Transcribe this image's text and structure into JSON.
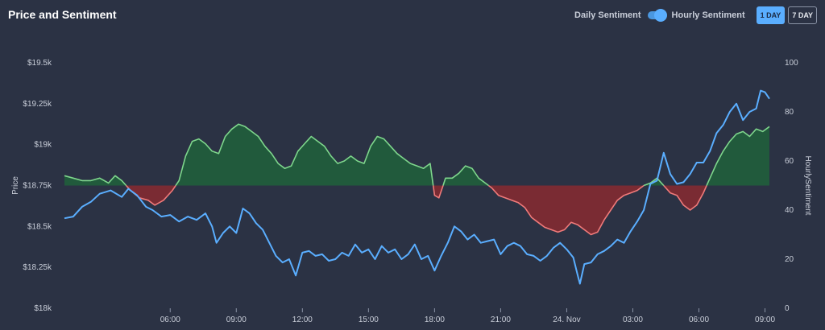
{
  "title": "Price and Sentiment",
  "controls": {
    "daily_label": "Daily Sentiment",
    "hourly_label": "Hourly Sentiment",
    "btn_1day": "1 DAY",
    "btn_7day": "7 DAY"
  },
  "colors": {
    "price_line": "#5aaeff",
    "positive_fill": "#215a3c",
    "positive_line": "#7ed68c",
    "negative_fill": "#7a2b33",
    "negative_line": "#f07a7a",
    "background": "#2b3244"
  },
  "chart_data": {
    "type": "line",
    "title": "",
    "xlabel": "",
    "ylabel": "Price",
    "ylabel_right": "HourlySentiment",
    "ylim": [
      18000,
      19500
    ],
    "ylim_right": [
      0,
      100
    ],
    "sentiment_baseline": 50,
    "y_ticks": [
      "$19.5k",
      "$19.25k",
      "$19k",
      "$18.75k",
      "$18.5k",
      "$18.25k",
      "$18k"
    ],
    "y_tick_values": [
      19500,
      19250,
      19000,
      18750,
      18500,
      18250,
      18000
    ],
    "y_right_ticks": [
      "100",
      "80",
      "60",
      "40",
      "20",
      "0"
    ],
    "y_right_tick_values": [
      100,
      80,
      60,
      40,
      20,
      0
    ],
    "x_ticks": [
      "06:00",
      "09:00",
      "12:00",
      "15:00",
      "18:00",
      "21:00",
      "24. Nov",
      "03:00",
      "06:00",
      "09:00"
    ],
    "x_tick_hours": [
      6,
      9,
      12,
      15,
      18,
      21,
      24,
      27,
      30,
      33
    ],
    "x_range_hours": [
      1.2,
      33.2
    ],
    "series": [
      {
        "name": "Price",
        "axis": "left",
        "points": [
          [
            1.2,
            18550
          ],
          [
            1.6,
            18560
          ],
          [
            2.0,
            18620
          ],
          [
            2.4,
            18650
          ],
          [
            2.8,
            18700
          ],
          [
            3.3,
            18720
          ],
          [
            3.8,
            18680
          ],
          [
            4.1,
            18730
          ],
          [
            4.5,
            18690
          ],
          [
            4.9,
            18620
          ],
          [
            5.2,
            18600
          ],
          [
            5.6,
            18560
          ],
          [
            6.0,
            18570
          ],
          [
            6.4,
            18530
          ],
          [
            6.8,
            18560
          ],
          [
            7.2,
            18540
          ],
          [
            7.6,
            18580
          ],
          [
            7.9,
            18500
          ],
          [
            8.1,
            18400
          ],
          [
            8.4,
            18460
          ],
          [
            8.7,
            18500
          ],
          [
            9.0,
            18460
          ],
          [
            9.3,
            18610
          ],
          [
            9.6,
            18580
          ],
          [
            9.9,
            18520
          ],
          [
            10.2,
            18480
          ],
          [
            10.5,
            18400
          ],
          [
            10.8,
            18320
          ],
          [
            11.1,
            18280
          ],
          [
            11.4,
            18300
          ],
          [
            11.7,
            18200
          ],
          [
            12.0,
            18340
          ],
          [
            12.3,
            18350
          ],
          [
            12.6,
            18320
          ],
          [
            12.9,
            18330
          ],
          [
            13.2,
            18290
          ],
          [
            13.5,
            18300
          ],
          [
            13.8,
            18340
          ],
          [
            14.1,
            18320
          ],
          [
            14.4,
            18390
          ],
          [
            14.7,
            18340
          ],
          [
            15.0,
            18360
          ],
          [
            15.3,
            18300
          ],
          [
            15.6,
            18380
          ],
          [
            15.9,
            18340
          ],
          [
            16.2,
            18360
          ],
          [
            16.5,
            18300
          ],
          [
            16.8,
            18330
          ],
          [
            17.1,
            18390
          ],
          [
            17.4,
            18300
          ],
          [
            17.7,
            18320
          ],
          [
            18.0,
            18230
          ],
          [
            18.3,
            18320
          ],
          [
            18.6,
            18400
          ],
          [
            18.9,
            18500
          ],
          [
            19.2,
            18470
          ],
          [
            19.5,
            18420
          ],
          [
            19.8,
            18450
          ],
          [
            20.1,
            18400
          ],
          [
            20.4,
            18410
          ],
          [
            20.7,
            18420
          ],
          [
            21.0,
            18330
          ],
          [
            21.3,
            18380
          ],
          [
            21.6,
            18400
          ],
          [
            21.9,
            18380
          ],
          [
            22.2,
            18330
          ],
          [
            22.5,
            18320
          ],
          [
            22.8,
            18290
          ],
          [
            23.1,
            18320
          ],
          [
            23.4,
            18370
          ],
          [
            23.7,
            18400
          ],
          [
            24.0,
            18360
          ],
          [
            24.3,
            18310
          ],
          [
            24.5,
            18200
          ],
          [
            24.6,
            18150
          ],
          [
            24.8,
            18270
          ],
          [
            25.1,
            18280
          ],
          [
            25.4,
            18330
          ],
          [
            25.7,
            18350
          ],
          [
            26.0,
            18380
          ],
          [
            26.3,
            18420
          ],
          [
            26.6,
            18400
          ],
          [
            26.9,
            18470
          ],
          [
            27.2,
            18530
          ],
          [
            27.5,
            18600
          ],
          [
            27.8,
            18760
          ],
          [
            28.1,
            18780
          ],
          [
            28.4,
            18950
          ],
          [
            28.7,
            18820
          ],
          [
            29.0,
            18760
          ],
          [
            29.3,
            18770
          ],
          [
            29.6,
            18820
          ],
          [
            29.9,
            18890
          ],
          [
            30.2,
            18890
          ],
          [
            30.5,
            18960
          ],
          [
            30.8,
            19070
          ],
          [
            31.1,
            19120
          ],
          [
            31.4,
            19200
          ],
          [
            31.7,
            19250
          ],
          [
            32.0,
            19150
          ],
          [
            32.3,
            19200
          ],
          [
            32.6,
            19220
          ],
          [
            32.8,
            19330
          ],
          [
            33.0,
            19320
          ],
          [
            33.2,
            19280
          ]
        ]
      },
      {
        "name": "HourlySentiment",
        "axis": "right",
        "points": [
          [
            1.2,
            54
          ],
          [
            1.6,
            53
          ],
          [
            2.0,
            52
          ],
          [
            2.4,
            52
          ],
          [
            2.8,
            53
          ],
          [
            3.2,
            51
          ],
          [
            3.5,
            54
          ],
          [
            3.8,
            52
          ],
          [
            4.2,
            48
          ],
          [
            4.6,
            45
          ],
          [
            5.0,
            44
          ],
          [
            5.3,
            42
          ],
          [
            5.7,
            44
          ],
          [
            6.1,
            48
          ],
          [
            6.4,
            52
          ],
          [
            6.7,
            62
          ],
          [
            7.0,
            68
          ],
          [
            7.3,
            69
          ],
          [
            7.6,
            67
          ],
          [
            7.9,
            64
          ],
          [
            8.2,
            63
          ],
          [
            8.5,
            70
          ],
          [
            8.8,
            73
          ],
          [
            9.1,
            75
          ],
          [
            9.4,
            74
          ],
          [
            9.7,
            72
          ],
          [
            10.0,
            70
          ],
          [
            10.3,
            66
          ],
          [
            10.6,
            63
          ],
          [
            10.9,
            59
          ],
          [
            11.2,
            57
          ],
          [
            11.5,
            58
          ],
          [
            11.8,
            64
          ],
          [
            12.1,
            67
          ],
          [
            12.4,
            70
          ],
          [
            12.7,
            68
          ],
          [
            13.0,
            66
          ],
          [
            13.3,
            62
          ],
          [
            13.6,
            59
          ],
          [
            13.9,
            60
          ],
          [
            14.2,
            62
          ],
          [
            14.5,
            60
          ],
          [
            14.8,
            59
          ],
          [
            15.1,
            66
          ],
          [
            15.4,
            70
          ],
          [
            15.7,
            69
          ],
          [
            16.0,
            66
          ],
          [
            16.3,
            63
          ],
          [
            16.6,
            61
          ],
          [
            16.9,
            59
          ],
          [
            17.2,
            58
          ],
          [
            17.5,
            57
          ],
          [
            17.8,
            59
          ],
          [
            18.0,
            46
          ],
          [
            18.2,
            45
          ],
          [
            18.5,
            53
          ],
          [
            18.8,
            53
          ],
          [
            19.1,
            55
          ],
          [
            19.4,
            58
          ],
          [
            19.7,
            57
          ],
          [
            20.0,
            53
          ],
          [
            20.3,
            51
          ],
          [
            20.6,
            49
          ],
          [
            20.9,
            46
          ],
          [
            21.2,
            45
          ],
          [
            21.5,
            44
          ],
          [
            21.8,
            43
          ],
          [
            22.1,
            41
          ],
          [
            22.4,
            37
          ],
          [
            22.7,
            35
          ],
          [
            23.0,
            33
          ],
          [
            23.3,
            32
          ],
          [
            23.6,
            31
          ],
          [
            23.9,
            32
          ],
          [
            24.2,
            35
          ],
          [
            24.5,
            34
          ],
          [
            24.8,
            32
          ],
          [
            25.1,
            30
          ],
          [
            25.4,
            31
          ],
          [
            25.7,
            36
          ],
          [
            26.0,
            40
          ],
          [
            26.3,
            44
          ],
          [
            26.6,
            46
          ],
          [
            26.9,
            47
          ],
          [
            27.2,
            48
          ],
          [
            27.5,
            50
          ],
          [
            27.8,
            51
          ],
          [
            28.1,
            53
          ],
          [
            28.4,
            50
          ],
          [
            28.7,
            47
          ],
          [
            29.0,
            46
          ],
          [
            29.3,
            42
          ],
          [
            29.6,
            40
          ],
          [
            29.9,
            42
          ],
          [
            30.2,
            47
          ],
          [
            30.5,
            53
          ],
          [
            30.8,
            59
          ],
          [
            31.1,
            64
          ],
          [
            31.4,
            68
          ],
          [
            31.7,
            71
          ],
          [
            32.0,
            72
          ],
          [
            32.3,
            70
          ],
          [
            32.6,
            73
          ],
          [
            32.9,
            72
          ],
          [
            33.2,
            74
          ]
        ]
      }
    ]
  }
}
